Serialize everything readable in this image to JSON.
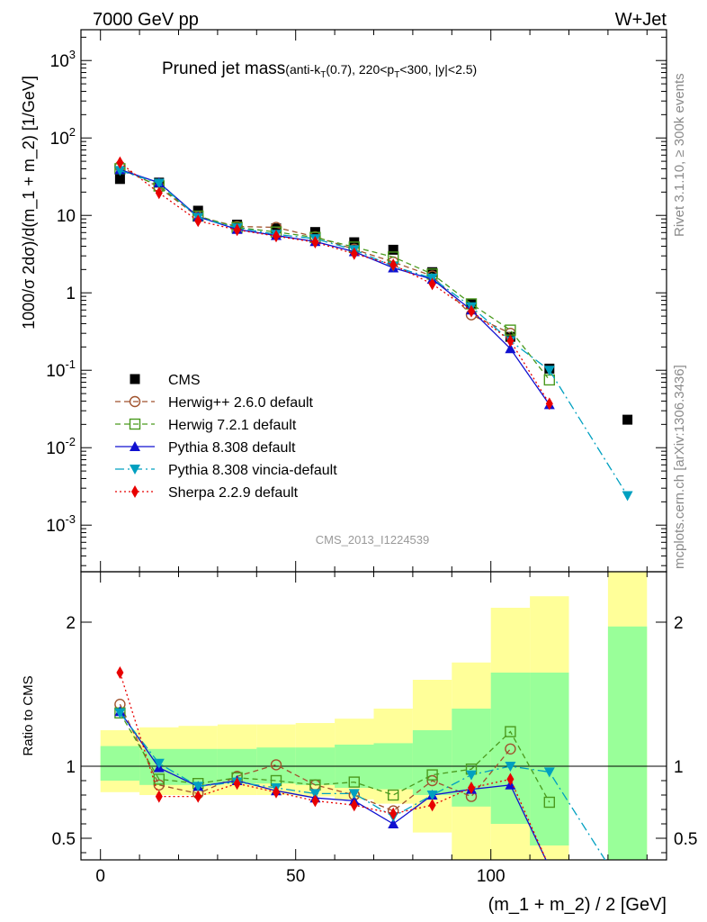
{
  "header": {
    "left": "7000 GeV pp",
    "right": "W+Jet"
  },
  "plot_title": {
    "main": "Pruned jet mass",
    "sub": "(anti-k",
    "sub_idx": "T",
    "sub_mid": "(0.7), 220<p",
    "sub_idx2": "T",
    "sub_end": "<300, |y|<2.5)"
  },
  "side_labels": {
    "rivet": "Rivet 3.1.10, ≥ 300k events",
    "mcplots": "mcplots.cern.ch [arXiv:1306.3436]"
  },
  "watermark": "CMS_2013_I1224539",
  "axes": {
    "ylabel_main": "1000/σ 2dσ)/d(m_1 + m_2) [1/GeV]",
    "ylabel_ratio": "Ratio to CMS",
    "xlabel": "(m_1 + m_2) / 2 [GeV]"
  },
  "colors": {
    "cms": "#000000",
    "herwigpp": "#a0522d",
    "herwig7": "#4a9a1e",
    "pythia": "#1010d0",
    "vincia": "#00a0c0",
    "sherpa": "#e80000",
    "band_inner": "#99ff99",
    "band_outer": "#ffff99"
  },
  "chart_data": {
    "type": "scatter",
    "x_main_range": [
      -5,
      145
    ],
    "y_main_range_log": [
      0.00025,
      2500
    ],
    "y_ratio_range": [
      0.35,
      2.35
    ],
    "x_ticks": [
      "0",
      "50",
      "100"
    ],
    "y_main_ticks": [
      "10^-3",
      "10^-2",
      "10^-1",
      "1",
      "10",
      "10^2",
      "10^3"
    ],
    "y_ratio_ticks": [
      "0.5",
      "1",
      "2"
    ],
    "legend_position": "lower-left",
    "x": [
      5,
      15,
      25,
      35,
      45,
      55,
      65,
      75,
      85,
      95,
      105,
      115,
      135
    ],
    "series": [
      {
        "name": "CMS",
        "key": "cms",
        "values": [
          29.5,
          26.5,
          11.5,
          7.6,
          6.8,
          6.1,
          4.5,
          3.6,
          1.85,
          0.72,
          0.27,
          0.105,
          0.023
        ]
      },
      {
        "name": "Herwig++ 2.6.0 default",
        "key": "herwigpp",
        "values": [
          43,
          23,
          9.6,
          7.2,
          7.0,
          5.3,
          3.65,
          2.5,
          1.65,
          0.52,
          0.3,
          null,
          null
        ],
        "ratio": [
          1.43,
          0.87,
          0.81,
          0.93,
          1.01,
          0.87,
          0.8,
          0.69,
          0.9,
          0.79,
          1.12,
          null,
          null
        ]
      },
      {
        "name": "Herwig 7.2.1 default",
        "key": "herwig7",
        "values": [
          40,
          24,
          9.8,
          7.0,
          6.1,
          5.2,
          3.9,
          2.9,
          1.75,
          0.72,
          0.33,
          0.075,
          null
        ],
        "ratio": [
          1.37,
          0.91,
          0.88,
          0.92,
          0.9,
          0.87,
          0.89,
          0.8,
          0.94,
          0.98,
          1.24,
          0.75,
          null
        ]
      },
      {
        "name": "Pythia 8.308 default",
        "key": "pythia",
        "values": [
          39,
          26.5,
          9.6,
          6.6,
          5.5,
          4.6,
          3.4,
          2.1,
          1.5,
          0.6,
          0.19,
          0.036,
          null
        ],
        "ratio": [
          1.38,
          0.99,
          0.86,
          0.9,
          0.83,
          0.78,
          0.76,
          0.6,
          0.8,
          0.84,
          0.87,
          0.3,
          null
        ]
      },
      {
        "name": "Pythia 8.308 vincia-default",
        "key": "vincia",
        "values": [
          38,
          26,
          9.4,
          6.9,
          5.7,
          5.0,
          3.6,
          2.2,
          1.55,
          0.66,
          0.24,
          0.1,
          0.0024
        ],
        "ratio": [
          1.37,
          1.02,
          0.86,
          0.89,
          0.85,
          0.81,
          0.81,
          0.65,
          0.8,
          0.94,
          1.0,
          0.96,
          0.105
        ]
      },
      {
        "name": "Sherpa 2.2.9 default",
        "key": "sherpa",
        "values": [
          48,
          19.5,
          8.5,
          6.5,
          5.4,
          4.5,
          3.2,
          2.3,
          1.3,
          0.58,
          0.24,
          0.037,
          null
        ],
        "ratio": [
          1.65,
          0.79,
          0.79,
          0.88,
          0.82,
          0.76,
          0.73,
          0.67,
          0.73,
          0.85,
          0.91,
          0.3,
          null
        ]
      }
    ],
    "cms_band_inner": [
      [
        0,
        10,
        0.9,
        1.14
      ],
      [
        10,
        20,
        0.87,
        1.12
      ],
      [
        20,
        30,
        0.87,
        1.12
      ],
      [
        30,
        40,
        0.88,
        1.12
      ],
      [
        40,
        50,
        0.88,
        1.13
      ],
      [
        50,
        60,
        0.87,
        1.13
      ],
      [
        60,
        70,
        0.85,
        1.15
      ],
      [
        70,
        80,
        0.84,
        1.16
      ],
      [
        80,
        90,
        0.8,
        1.25
      ],
      [
        90,
        100,
        0.72,
        1.4
      ],
      [
        100,
        110,
        0.6,
        1.65
      ],
      [
        110,
        120,
        0.45,
        1.65
      ],
      [
        130,
        140,
        0.35,
        1.97
      ]
    ],
    "cms_band_outer": [
      [
        0,
        10,
        0.82,
        1.25
      ],
      [
        10,
        20,
        0.8,
        1.27
      ],
      [
        20,
        30,
        0.8,
        1.28
      ],
      [
        30,
        40,
        0.8,
        1.29
      ],
      [
        40,
        50,
        0.8,
        1.29
      ],
      [
        50,
        60,
        0.79,
        1.3
      ],
      [
        60,
        70,
        0.77,
        1.33
      ],
      [
        70,
        80,
        0.74,
        1.4
      ],
      [
        80,
        90,
        0.54,
        1.6
      ],
      [
        90,
        100,
        0.35,
        1.72
      ],
      [
        100,
        110,
        0.35,
        2.1
      ],
      [
        110,
        120,
        0.35,
        2.18
      ],
      [
        130,
        140,
        0.35,
        2.35
      ]
    ]
  }
}
